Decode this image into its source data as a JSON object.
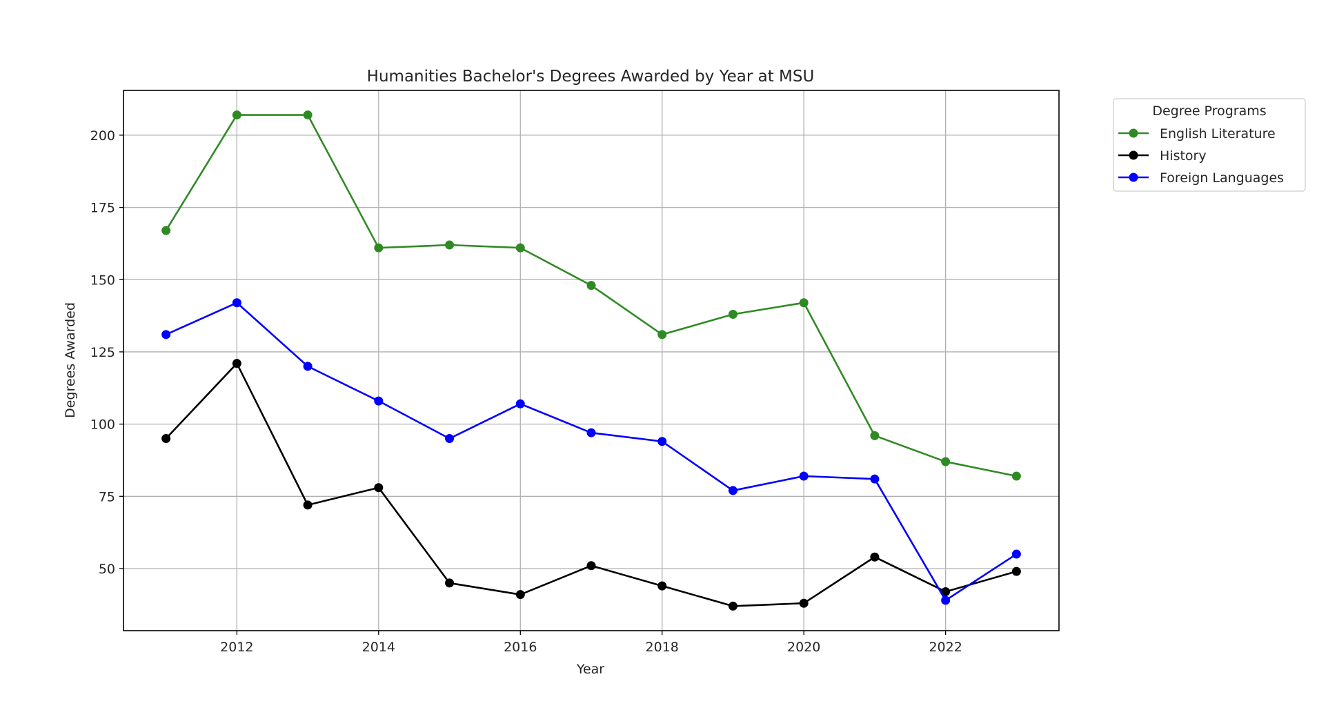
{
  "chart_data": {
    "type": "line",
    "title": "Humanities Bachelor's Degrees Awarded by Year at MSU",
    "xlabel": "Year",
    "ylabel": "Degrees Awarded",
    "x": [
      2011,
      2012,
      2013,
      2014,
      2015,
      2016,
      2017,
      2018,
      2019,
      2020,
      2021,
      2022,
      2023
    ],
    "series": [
      {
        "name": "English Literature",
        "color": "#308a24",
        "values": [
          167,
          207,
          207,
          161,
          162,
          161,
          148,
          131,
          138,
          142,
          96,
          87,
          82
        ]
      },
      {
        "name": "History",
        "color": "#000000",
        "values": [
          95,
          121,
          72,
          78,
          45,
          41,
          51,
          44,
          37,
          38,
          54,
          42,
          49
        ]
      },
      {
        "name": "Foreign Languages",
        "color": "#0000ff",
        "values": [
          131,
          142,
          120,
          108,
          95,
          107,
          97,
          94,
          77,
          82,
          81,
          39,
          55
        ]
      }
    ],
    "xticks": [
      2012,
      2014,
      2016,
      2018,
      2020,
      2022
    ],
    "yticks": [
      50,
      75,
      100,
      125,
      150,
      175,
      200
    ],
    "xlim": [
      2010.4,
      2023.6
    ],
    "ylim": [
      28.5,
      215.5
    ],
    "grid": true,
    "legend": {
      "title": "Degree Programs",
      "position": "outside upper right"
    }
  }
}
